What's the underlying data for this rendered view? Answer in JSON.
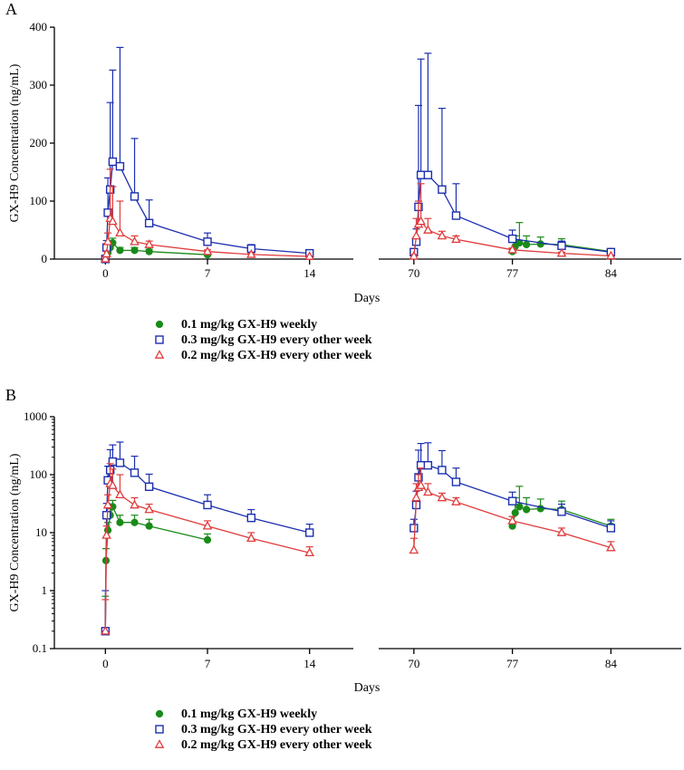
{
  "chart_data": [
    {
      "panel_label": "A",
      "type": "line",
      "yscale": "linear",
      "ylabel": "GX-H9 Concentration (ng/mL)",
      "xlabel": "Days",
      "ylim": [
        0,
        400
      ],
      "yticks": [
        0,
        100,
        200,
        300,
        400
      ],
      "ytick_labels": [
        "0",
        "100",
        "200",
        "300",
        "400"
      ],
      "x_segments": [
        {
          "xlim": [
            -3.5,
            17
          ],
          "xticks": [
            0,
            7,
            14
          ],
          "xtick_labels": [
            "0",
            "7",
            "14"
          ]
        },
        {
          "xlim": [
            67.5,
            89
          ],
          "xticks": [
            70,
            77,
            84
          ],
          "xtick_labels": [
            "70",
            "77",
            "84"
          ]
        }
      ],
      "series": [
        {
          "name": "0.1 mg/kg GX-H9 weekly",
          "color": "#1a8a1a",
          "marker": "circle",
          "segments": [
            {
              "x": [
                0,
                0.04,
                0.17,
                0.33,
                0.5,
                1,
                2,
                3,
                7
              ],
              "y": [
                0.2,
                3.3,
                11,
                20,
                28,
                15,
                15,
                13,
                7.5
              ],
              "err": [
                0.6,
                2,
                4,
                6,
                8,
                5,
                5,
                4,
                2
              ]
            },
            {
              "x": [
                77,
                77.2,
                77.5,
                78,
                79,
                80.5,
                84
              ],
              "y": [
                13,
                22,
                28,
                25,
                26,
                25,
                13
              ],
              "err": [
                6,
                18,
                35,
                15,
                12,
                10,
                4
              ]
            }
          ]
        },
        {
          "name": "0.3 mg/kg GX-H9 every other week",
          "color": "#1c2fb0",
          "marker": "square",
          "segments": [
            {
              "x": [
                0,
                0.08,
                0.17,
                0.33,
                0.5,
                1,
                2,
                3,
                7,
                10,
                14
              ],
              "y": [
                0.2,
                20,
                80,
                120,
                168,
                160,
                108,
                62,
                30,
                18,
                10
              ],
              "err": [
                0.8,
                12,
                60,
                150,
                158,
                205,
                100,
                40,
                15,
                7,
                4
              ]
            },
            {
              "x": [
                70,
                70.17,
                70.33,
                70.5,
                71,
                72,
                73,
                77,
                80.5,
                84
              ],
              "y": [
                12,
                30,
                90,
                145,
                145,
                120,
                75,
                35,
                23,
                12
              ],
              "err": [
                5,
                22,
                175,
                200,
                210,
                140,
                55,
                15,
                8,
                4
              ]
            }
          ]
        },
        {
          "name": "0.2 mg/kg GX-H9 every other week",
          "color": "#e03c3c",
          "marker": "triangle",
          "segments": [
            {
              "x": [
                0,
                0.08,
                0.17,
                0.33,
                0.5,
                1,
                2,
                3,
                7,
                10,
                14
              ],
              "y": [
                0.2,
                9,
                30,
                70,
                65,
                45,
                30,
                25,
                13,
                8,
                4.5
              ],
              "err": [
                0.5,
                4,
                15,
                85,
                60,
                55,
                10,
                6,
                3,
                2,
                1.2
              ]
            },
            {
              "x": [
                70,
                70.17,
                70.33,
                70.5,
                71,
                72,
                73,
                77,
                80.5,
                84
              ],
              "y": [
                5,
                40,
                60,
                65,
                50,
                40,
                34,
                16,
                10,
                5.5
              ],
              "err": [
                3,
                30,
                40,
                65,
                20,
                8,
                6,
                3,
                2,
                1.5
              ]
            }
          ]
        }
      ]
    },
    {
      "panel_label": "B",
      "type": "line",
      "yscale": "log",
      "ylabel": "GX-H9 Concentration (ng/mL)",
      "xlabel": "Days",
      "ylim": [
        0.1,
        1000
      ],
      "yticks": [
        0.1,
        1,
        10,
        100,
        1000
      ],
      "ytick_labels": [
        "0.1",
        "1",
        "10",
        "100",
        "1000"
      ],
      "x_segments": [
        {
          "xlim": [
            -3.5,
            17
          ],
          "xticks": [
            0,
            7,
            14
          ],
          "xtick_labels": [
            "0",
            "7",
            "14"
          ]
        },
        {
          "xlim": [
            67.5,
            89
          ],
          "xticks": [
            70,
            77,
            84
          ],
          "xtick_labels": [
            "70",
            "77",
            "84"
          ]
        }
      ],
      "series": [
        {
          "name": "0.1 mg/kg GX-H9 weekly",
          "color": "#1a8a1a",
          "marker": "circle",
          "segments": [
            {
              "x": [
                0,
                0.04,
                0.17,
                0.33,
                0.5,
                1,
                2,
                3,
                7
              ],
              "y": [
                0.2,
                3.3,
                11,
                20,
                28,
                15,
                15,
                13,
                7.5
              ],
              "err": [
                0.6,
                2,
                4,
                6,
                8,
                5,
                5,
                4,
                2
              ]
            },
            {
              "x": [
                77,
                77.2,
                77.5,
                78,
                79,
                80.5,
                84
              ],
              "y": [
                13,
                22,
                28,
                25,
                26,
                25,
                13
              ],
              "err": [
                6,
                18,
                35,
                15,
                12,
                10,
                4
              ]
            }
          ]
        },
        {
          "name": "0.3 mg/kg GX-H9 every other week",
          "color": "#1c2fb0",
          "marker": "square",
          "segments": [
            {
              "x": [
                0,
                0.08,
                0.17,
                0.33,
                0.5,
                1,
                2,
                3,
                7,
                10,
                14
              ],
              "y": [
                0.2,
                20,
                80,
                120,
                168,
                160,
                108,
                62,
                30,
                18,
                10
              ],
              "err": [
                0.8,
                12,
                60,
                150,
                158,
                205,
                100,
                40,
                15,
                7,
                4
              ]
            },
            {
              "x": [
                70,
                70.17,
                70.33,
                70.5,
                71,
                72,
                73,
                77,
                80.5,
                84
              ],
              "y": [
                12,
                30,
                90,
                145,
                145,
                120,
                75,
                35,
                23,
                12
              ],
              "err": [
                5,
                22,
                175,
                200,
                210,
                140,
                55,
                15,
                8,
                4
              ]
            }
          ]
        },
        {
          "name": "0.2 mg/kg GX-H9 every other week",
          "color": "#e03c3c",
          "marker": "triangle",
          "segments": [
            {
              "x": [
                0,
                0.08,
                0.17,
                0.33,
                0.5,
                1,
                2,
                3,
                7,
                10,
                14
              ],
              "y": [
                0.2,
                9,
                30,
                70,
                65,
                45,
                30,
                25,
                13,
                8,
                4.5
              ],
              "err": [
                0.5,
                4,
                15,
                85,
                60,
                55,
                10,
                6,
                3,
                2,
                1.2
              ]
            },
            {
              "x": [
                70,
                70.17,
                70.33,
                70.5,
                71,
                72,
                73,
                77,
                80.5,
                84
              ],
              "y": [
                5,
                40,
                60,
                65,
                50,
                40,
                34,
                16,
                10,
                5.5
              ],
              "err": [
                3,
                30,
                40,
                65,
                20,
                8,
                6,
                3,
                2,
                1.5
              ]
            }
          ]
        }
      ]
    }
  ]
}
